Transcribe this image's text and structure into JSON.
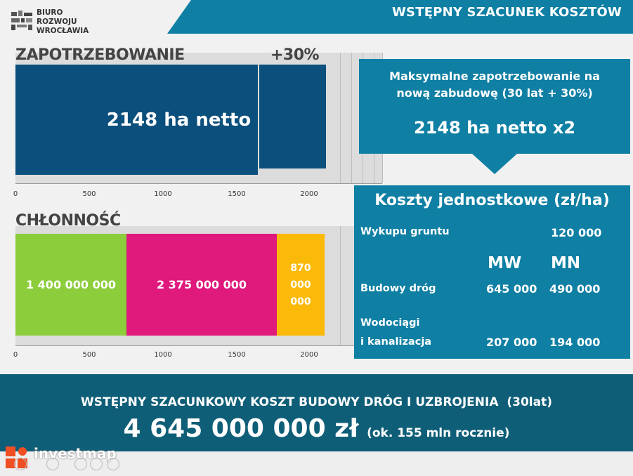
{
  "header": {
    "logo_lines": [
      "BIURO",
      "ROZWOJU",
      "WROCŁAWIA"
    ],
    "title": "WSTĘPNY SZACUNEK KOSZTÓW"
  },
  "demand": {
    "label": "ZAPOTRZEBOWANIE",
    "extra_label": "+30%",
    "main_bar_label": "2148 ha netto"
  },
  "absorption": {
    "label": "CHŁONNOŚĆ",
    "segments": [
      {
        "label": "1 400 000 000",
        "color": "#8ccd3c"
      },
      {
        "label": "2 375 000 000",
        "color": "#e0197d"
      },
      {
        "label_lines": [
          "870",
          "000",
          "000"
        ],
        "color": "#fbba09"
      }
    ]
  },
  "axis": {
    "ticks": [
      "0",
      "500",
      "1000",
      "1500",
      "2000"
    ]
  },
  "max_demand_panel": {
    "line1": "Maksymalne zapotrzebowanie na",
    "line2": "nową zabudowę (30 lat + 30%)",
    "value": "2148 ha netto x2"
  },
  "unit_costs": {
    "title": "Koszty jednostkowe (zł/ha)",
    "land_label": "Wykupu gruntu",
    "land_value": "120 000",
    "col_mw": "MW",
    "col_mn": "MN",
    "roads_label": "Budowy dróg",
    "roads_mw": "645 000",
    "roads_mn": "490 000",
    "water_label_1": "Wodociągi",
    "water_label_2": "i kanalizacja",
    "water_mw": "207 000",
    "water_mn": "194 000"
  },
  "summary": {
    "line1": "WSTĘPNY SZACUNKOWY KOSZT BUDOWY DRÓG I UZBROJENIA  (30lat)",
    "amount": "4 645 000 000 zł",
    "note": "(ok. 155 mln rocznie)"
  },
  "watermark": {
    "brand": "investmap"
  },
  "colors": {
    "teal": "#0f7fa4",
    "navy": "#0b4f7c",
    "dark_teal": "#0f5e78"
  }
}
